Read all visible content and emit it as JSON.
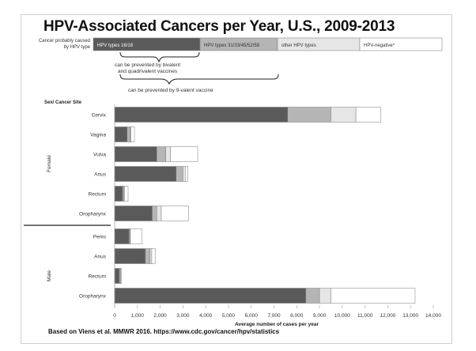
{
  "slide": {
    "title": "HPV-Associated Cancers per Year, U.S., 2009-2013",
    "footer": "Based on Viens et al. MMWR 2016. https://www.cdc.gov/cancer/hpv/statistics"
  },
  "chart_data": {
    "type": "bar",
    "orientation": "horizontal",
    "stacked": true,
    "title": "HPV-Associated Cancers per Year, U.S., 2009-2013",
    "xlabel": "Average number of cases per year",
    "ylabel": "Sex/ Cancer Site",
    "xlim": [
      0,
      14000
    ],
    "x_ticks": [
      "0",
      "1,000",
      "2,000",
      "3,000",
      "4,000",
      "5,000",
      "6,000",
      "7,000",
      "8,000",
      "9,000",
      "10,000",
      "11,000",
      "12,000",
      "13,000",
      "14,000"
    ],
    "legend_title": "Cancer probably caused by HPV type",
    "legend_position": "top",
    "legend_notes": [
      "can be prevented by bivalent and quadrivalent vaccines",
      "can be prevented by 9-valent vaccine"
    ],
    "groups": [
      {
        "name": "Female",
        "categories": [
          "Cervix",
          "Vagina",
          "Vulva",
          "Anus",
          "Rectum",
          "Oropharynx"
        ]
      },
      {
        "name": "Male",
        "categories": [
          "Penis",
          "Anus",
          "Rectum",
          "Oropharynx"
        ]
      }
    ],
    "categories": [
      "Cervix",
      "Vagina",
      "Vulva",
      "Anus",
      "Rectum",
      "Oropharynx",
      "Penis",
      "Anus",
      "Rectum",
      "Oropharynx"
    ],
    "series": [
      {
        "name": "HPV types 16/18",
        "color": "#5a5a5a",
        "values": [
          7600,
          550,
          1850,
          2700,
          350,
          1650,
          630,
          1350,
          200,
          8400
        ]
      },
      {
        "name": "HPV types 31/33/45/52/58",
        "color": "#b5b5b5",
        "values": [
          1900,
          130,
          400,
          300,
          50,
          200,
          40,
          200,
          40,
          600
        ]
      },
      {
        "name": "other HPV types",
        "color": "#e6e6e6",
        "values": [
          1100,
          40,
          200,
          100,
          30,
          200,
          20,
          80,
          30,
          500
        ]
      },
      {
        "name": "HPV-negative*",
        "color": "#ffffff",
        "values": [
          1100,
          150,
          1200,
          120,
          160,
          1200,
          510,
          150,
          30,
          3700
        ]
      }
    ]
  }
}
